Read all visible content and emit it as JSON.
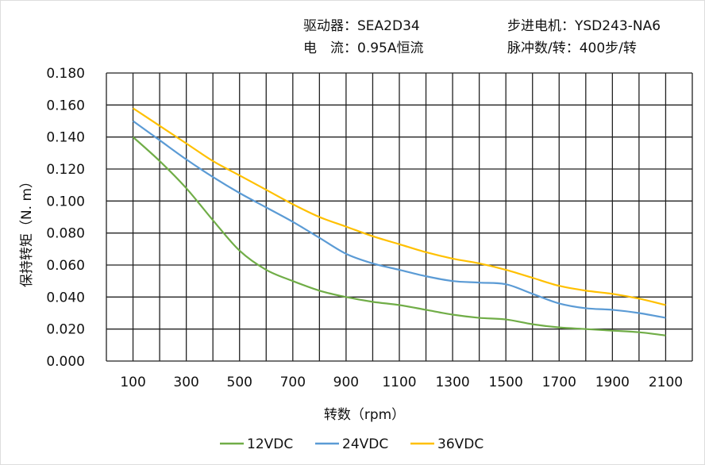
{
  "header": {
    "driver": "驱动器：SEA2D34",
    "current": "电　流：0.95A恒流",
    "motor": "步进电机：YSD243-NA6",
    "pulses": "脉冲数/转：400步/转"
  },
  "chart_data": {
    "type": "line",
    "title": "",
    "xlabel": "转数（rpm）",
    "ylabel": "保持转矩（N. m）",
    "xlim": [
      0,
      2200
    ],
    "ylim": [
      0,
      0.18
    ],
    "grid": true,
    "legend": "bottom",
    "x_ticks": [
      "100",
      "300",
      "500",
      "700",
      "900",
      "1100",
      "1300",
      "1500",
      "1700",
      "1900",
      "2100"
    ],
    "y_ticks": [
      "0.000",
      "0.020",
      "0.040",
      "0.060",
      "0.080",
      "0.100",
      "0.120",
      "0.140",
      "0.160",
      "0.180"
    ],
    "x": [
      100,
      200,
      300,
      400,
      500,
      600,
      700,
      800,
      900,
      1000,
      1100,
      1200,
      1300,
      1400,
      1500,
      1600,
      1700,
      1800,
      1900,
      2000,
      2100
    ],
    "series": [
      {
        "name": "12VDC",
        "color": "#70ad47",
        "values": [
          0.14,
          0.125,
          0.108,
          0.088,
          0.069,
          0.057,
          0.05,
          0.044,
          0.04,
          0.037,
          0.035,
          0.032,
          0.029,
          0.027,
          0.026,
          0.023,
          0.021,
          0.02,
          0.019,
          0.018,
          0.016
        ]
      },
      {
        "name": "24VDC",
        "color": "#5b9bd5",
        "values": [
          0.15,
          0.138,
          0.126,
          0.115,
          0.105,
          0.096,
          0.087,
          0.077,
          0.067,
          0.061,
          0.057,
          0.053,
          0.05,
          0.049,
          0.048,
          0.042,
          0.036,
          0.033,
          0.032,
          0.03,
          0.027
        ]
      },
      {
        "name": "36VDC",
        "color": "#ffc000",
        "values": [
          0.158,
          0.147,
          0.136,
          0.125,
          0.116,
          0.107,
          0.098,
          0.09,
          0.084,
          0.078,
          0.073,
          0.068,
          0.064,
          0.061,
          0.057,
          0.052,
          0.047,
          0.044,
          0.042,
          0.039,
          0.035
        ]
      }
    ]
  }
}
